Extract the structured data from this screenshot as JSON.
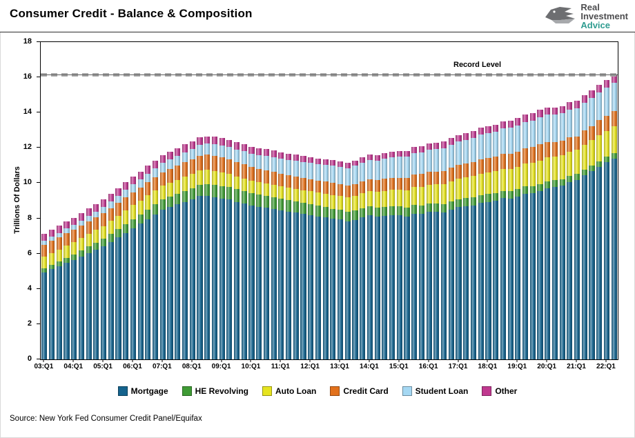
{
  "header": {
    "title": "Consumer Credit - Balance & Composition",
    "logo": {
      "line1": "Real",
      "line2": "Investment",
      "line3": "Advice"
    }
  },
  "chart_data": {
    "type": "bar",
    "stacked": true,
    "title": "Consumer Credit - Balance & Composition",
    "xlabel": "",
    "ylabel": "Trillions Of Dollars",
    "ylim": [
      0,
      18
    ],
    "ytick_step": 2,
    "grid": false,
    "legend_position": "bottom",
    "frequency": "quarterly",
    "x_start": "2003:Q1",
    "x_end": "2022:Q2",
    "xtick_every": 4,
    "xtick_labels": [
      "03:Q1",
      "04:Q1",
      "05:Q1",
      "06:Q1",
      "07:Q1",
      "08:Q1",
      "09:Q1",
      "10:Q1",
      "11:Q1",
      "12:Q1",
      "13:Q1",
      "14:Q1",
      "15:Q1",
      "16:Q1",
      "17:Q1",
      "18:Q1",
      "19:Q1",
      "20:Q1",
      "21:Q1",
      "22:Q1"
    ],
    "record_level": {
      "label": "Record Level",
      "value": 16.15,
      "color": "#a8a8a8"
    },
    "series": [
      {
        "name": "Mortgage",
        "color": "#15638d",
        "values": [
          4.94,
          5.11,
          5.28,
          5.46,
          5.63,
          5.82,
          6.02,
          6.21,
          6.4,
          6.66,
          6.92,
          7.17,
          7.43,
          7.69,
          7.95,
          8.22,
          8.48,
          8.63,
          8.79,
          8.94,
          9.09,
          9.27,
          9.29,
          9.2,
          9.12,
          9.06,
          8.94,
          8.84,
          8.73,
          8.66,
          8.59,
          8.52,
          8.45,
          8.38,
          8.32,
          8.25,
          8.19,
          8.12,
          8.06,
          7.99,
          7.93,
          7.84,
          7.9,
          8.05,
          8.17,
          8.1,
          8.13,
          8.17,
          8.17,
          8.12,
          8.26,
          8.25,
          8.37,
          8.36,
          8.35,
          8.48,
          8.63,
          8.69,
          8.74,
          8.88,
          8.94,
          9.0,
          9.14,
          9.12,
          9.24,
          9.41,
          9.44,
          9.56,
          9.71,
          9.78,
          9.86,
          10.04,
          10.16,
          10.44,
          10.67,
          10.93,
          11.18,
          11.39
        ]
      },
      {
        "name": "HE Revolving",
        "color": "#3f9b35",
        "values": [
          0.24,
          0.26,
          0.28,
          0.31,
          0.33,
          0.36,
          0.39,
          0.41,
          0.44,
          0.46,
          0.48,
          0.51,
          0.53,
          0.54,
          0.56,
          0.57,
          0.58,
          0.59,
          0.6,
          0.61,
          0.62,
          0.64,
          0.66,
          0.69,
          0.71,
          0.71,
          0.71,
          0.71,
          0.71,
          0.7,
          0.69,
          0.68,
          0.67,
          0.66,
          0.64,
          0.63,
          0.61,
          0.59,
          0.58,
          0.56,
          0.55,
          0.54,
          0.54,
          0.53,
          0.53,
          0.52,
          0.52,
          0.51,
          0.51,
          0.5,
          0.5,
          0.49,
          0.49,
          0.48,
          0.47,
          0.47,
          0.46,
          0.45,
          0.45,
          0.44,
          0.44,
          0.43,
          0.42,
          0.41,
          0.41,
          0.4,
          0.4,
          0.39,
          0.39,
          0.38,
          0.37,
          0.36,
          0.35,
          0.34,
          0.33,
          0.32,
          0.32,
          0.32
        ]
      },
      {
        "name": "Auto Loan",
        "color": "#e6e41f",
        "values": [
          0.64,
          0.66,
          0.67,
          0.69,
          0.7,
          0.71,
          0.71,
          0.72,
          0.73,
          0.74,
          0.76,
          0.77,
          0.79,
          0.79,
          0.79,
          0.79,
          0.79,
          0.8,
          0.8,
          0.81,
          0.81,
          0.81,
          0.81,
          0.8,
          0.78,
          0.76,
          0.74,
          0.72,
          0.7,
          0.7,
          0.7,
          0.7,
          0.7,
          0.71,
          0.71,
          0.72,
          0.73,
          0.75,
          0.77,
          0.78,
          0.79,
          0.81,
          0.83,
          0.85,
          0.86,
          0.88,
          0.91,
          0.93,
          0.95,
          0.98,
          1.01,
          1.04,
          1.06,
          1.09,
          1.12,
          1.14,
          1.17,
          1.18,
          1.2,
          1.21,
          1.23,
          1.24,
          1.26,
          1.27,
          1.28,
          1.3,
          1.32,
          1.33,
          1.35,
          1.35,
          1.36,
          1.37,
          1.38,
          1.41,
          1.44,
          1.46,
          1.47,
          1.5
        ]
      },
      {
        "name": "Credit Card",
        "color": "#e2711c",
        "values": [
          0.69,
          0.69,
          0.69,
          0.7,
          0.7,
          0.7,
          0.71,
          0.71,
          0.71,
          0.72,
          0.72,
          0.73,
          0.73,
          0.74,
          0.75,
          0.76,
          0.77,
          0.79,
          0.8,
          0.82,
          0.82,
          0.84,
          0.85,
          0.87,
          0.85,
          0.83,
          0.81,
          0.79,
          0.77,
          0.75,
          0.74,
          0.73,
          0.7,
          0.69,
          0.69,
          0.7,
          0.68,
          0.67,
          0.67,
          0.68,
          0.66,
          0.66,
          0.67,
          0.68,
          0.66,
          0.67,
          0.68,
          0.7,
          0.68,
          0.7,
          0.71,
          0.73,
          0.71,
          0.73,
          0.75,
          0.78,
          0.76,
          0.78,
          0.81,
          0.83,
          0.82,
          0.83,
          0.84,
          0.87,
          0.85,
          0.87,
          0.88,
          0.93,
          0.89,
          0.82,
          0.81,
          0.82,
          0.77,
          0.79,
          0.8,
          0.86,
          0.84,
          0.89
        ]
      },
      {
        "name": "Student Loan",
        "color": "#a5d8f3",
        "values": [
          0.24,
          0.25,
          0.25,
          0.26,
          0.26,
          0.28,
          0.31,
          0.33,
          0.36,
          0.38,
          0.4,
          0.43,
          0.45,
          0.47,
          0.49,
          0.5,
          0.52,
          0.54,
          0.56,
          0.57,
          0.59,
          0.61,
          0.63,
          0.65,
          0.67,
          0.69,
          0.71,
          0.74,
          0.76,
          0.79,
          0.81,
          0.84,
          0.87,
          0.88,
          0.9,
          0.91,
          0.93,
          0.94,
          0.96,
          0.97,
          0.99,
          1.01,
          1.04,
          1.06,
          1.09,
          1.11,
          1.14,
          1.16,
          1.19,
          1.21,
          1.22,
          1.24,
          1.26,
          1.28,
          1.3,
          1.32,
          1.34,
          1.36,
          1.38,
          1.4,
          1.41,
          1.43,
          1.45,
          1.47,
          1.49,
          1.5,
          1.51,
          1.52,
          1.54,
          1.55,
          1.56,
          1.57,
          1.58,
          1.58,
          1.59,
          1.59,
          1.59,
          1.59
        ]
      },
      {
        "name": "Other",
        "color": "#c0388f",
        "values": [
          0.39,
          0.4,
          0.41,
          0.42,
          0.42,
          0.42,
          0.43,
          0.43,
          0.43,
          0.43,
          0.43,
          0.43,
          0.43,
          0.43,
          0.44,
          0.44,
          0.44,
          0.44,
          0.44,
          0.45,
          0.43,
          0.43,
          0.42,
          0.42,
          0.42,
          0.41,
          0.41,
          0.41,
          0.4,
          0.39,
          0.39,
          0.38,
          0.37,
          0.36,
          0.35,
          0.34,
          0.33,
          0.32,
          0.32,
          0.32,
          0.31,
          0.31,
          0.31,
          0.31,
          0.32,
          0.32,
          0.32,
          0.33,
          0.33,
          0.33,
          0.34,
          0.34,
          0.35,
          0.35,
          0.36,
          0.36,
          0.37,
          0.37,
          0.38,
          0.38,
          0.39,
          0.39,
          0.4,
          0.4,
          0.41,
          0.41,
          0.42,
          0.42,
          0.42,
          0.42,
          0.42,
          0.43,
          0.42,
          0.42,
          0.43,
          0.43,
          0.44,
          0.46
        ]
      }
    ]
  },
  "footer": {
    "source": "Source: New York Fed Consumer Credit Panel/Equifax"
  }
}
